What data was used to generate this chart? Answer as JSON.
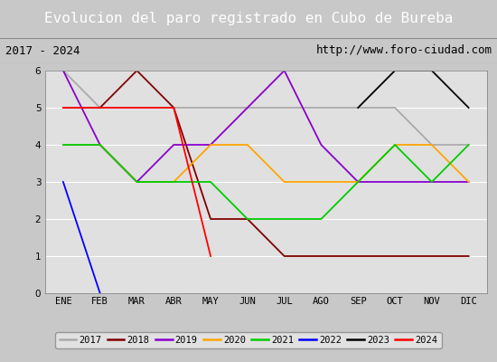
{
  "title": "Evolucion del paro registrado en Cubo de Bureba",
  "subtitle_left": "2017 - 2024",
  "subtitle_right": "http://www.foro-ciudad.com",
  "ylim": [
    0.0,
    6.0
  ],
  "yticks": [
    0.0,
    1.0,
    2.0,
    3.0,
    4.0,
    5.0,
    6.0
  ],
  "months": [
    "ENE",
    "FEB",
    "MAR",
    "ABR",
    "MAY",
    "JUN",
    "JUL",
    "AGO",
    "SEP",
    "OCT",
    "NOV",
    "DIC"
  ],
  "series": {
    "2017": {
      "color": "#aaaaaa",
      "values": [
        6,
        5,
        5,
        5,
        5,
        5,
        5,
        5,
        5,
        5,
        4,
        4
      ]
    },
    "2018": {
      "color": "#800000",
      "values": [
        5,
        5,
        6,
        5,
        2,
        2,
        1,
        1,
        1,
        1,
        1,
        1
      ]
    },
    "2019": {
      "color": "#8800cc",
      "values": [
        6,
        4,
        3,
        4,
        4,
        5,
        6,
        4,
        3,
        3,
        3,
        3
      ]
    },
    "2020": {
      "color": "#ffa500",
      "values": [
        4,
        4,
        3,
        3,
        4,
        4,
        3,
        3,
        3,
        4,
        4,
        3
      ]
    },
    "2021": {
      "color": "#00cc00",
      "values": [
        4,
        4,
        3,
        3,
        3,
        2,
        2,
        2,
        3,
        4,
        3,
        4
      ]
    },
    "2022": {
      "color": "#0000ff",
      "values": [
        3,
        0,
        null,
        null,
        null,
        null,
        null,
        null,
        null,
        null,
        null,
        null
      ]
    },
    "2023": {
      "color": "#000000",
      "values": [
        null,
        null,
        null,
        null,
        null,
        null,
        null,
        null,
        5,
        6,
        6,
        5
      ]
    },
    "2024": {
      "color": "#ff0000",
      "values": [
        5,
        5,
        5,
        5,
        1,
        null,
        null,
        null,
        null,
        null,
        null,
        null
      ]
    }
  },
  "fig_bg_color": "#c8c8c8",
  "title_bg_color": "#4a7fc0",
  "title_fg_color": "#ffffff",
  "subtitle_bg_color": "#d4d4d4",
  "plot_bg_color": "#e0e0e0",
  "grid_color": "#ffffff",
  "legend_bg_color": "#e8e8e8",
  "border_color": "#888888"
}
